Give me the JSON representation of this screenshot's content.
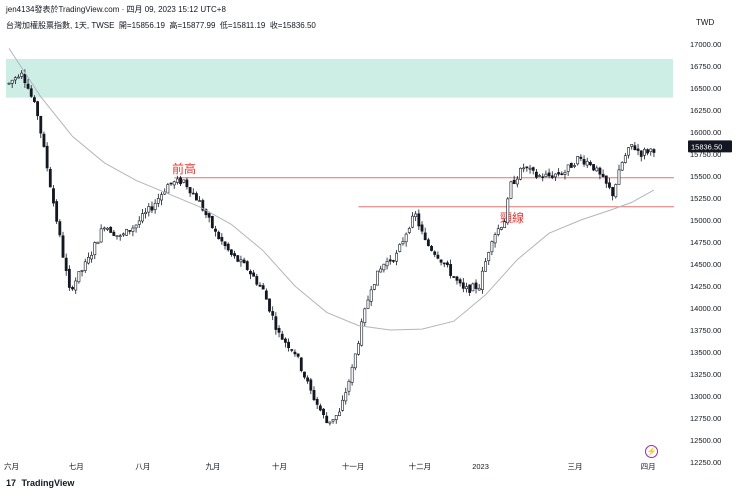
{
  "header": {
    "author_line": "jen4134發表於TradingView.com",
    "date_line": "四月 09, 2023 15:12 UTC+8",
    "symbol_line": "台灣加權股票指數, 1天, TWSE",
    "ohlc": {
      "open": "開=15856.19",
      "high": "高=15877.99",
      "low": "低=15811.19",
      "close": "收=15836.50"
    }
  },
  "footer": {
    "brand": "TradingView",
    "logo_icon": "tradingview-logo-icon",
    "flash_icon": "lightning-icon"
  },
  "colors": {
    "up": "#ffffff",
    "down": "#131722",
    "zone_fill": "#cdeee5",
    "hline": "#e57373",
    "ma": "#b2b5be",
    "annotation": "#e53935",
    "price_tag": "#131722"
  },
  "chart_data": {
    "type": "candlestick",
    "currency": "TWD",
    "ylim": [
      12250,
      17250
    ],
    "yticks": [
      12250,
      12500,
      12750,
      13000,
      13250,
      13500,
      13750,
      14000,
      14250,
      14500,
      14750,
      15000,
      15250,
      15500,
      15750,
      16000,
      16250,
      16500,
      16750,
      17000
    ],
    "ytick_labels": [
      "12250.00",
      "12500.00",
      "12750.00",
      "13000.00",
      "13250.00",
      "13500.00",
      "13750.00",
      "14000.00",
      "14250.00",
      "14500.00",
      "14750.00",
      "15000.00",
      "15250.00",
      "15500.00",
      "15750.00",
      "16000.00",
      "16250.00",
      "16500.00",
      "16750.00",
      "17000.00"
    ],
    "xticks": [
      {
        "label": "六月",
        "index": 0
      },
      {
        "label": "七月",
        "index": 21
      },
      {
        "label": "八月",
        "index": 42
      },
      {
        "label": "九月",
        "index": 64
      },
      {
        "label": "十月",
        "index": 85
      },
      {
        "label": "十一月",
        "index": 107
      },
      {
        "label": "十二月",
        "index": 128
      },
      {
        "label": "2023",
        "index": 148
      },
      {
        "label": "三月",
        "index": 178
      },
      {
        "label": "四月",
        "index": 201
      }
    ],
    "last_price": "15836.50",
    "last_value": 15836.5,
    "zone": {
      "low": 16390,
      "high": 16830,
      "from_index": 0,
      "to_index": 209
    },
    "hlines": [
      {
        "value": 15480,
        "from_index": 52,
        "to_index": 209,
        "label": "前高"
      },
      {
        "value": 15150,
        "from_index": 110,
        "to_index": 209,
        "label": "頸線"
      }
    ],
    "anchors": [
      [
        0,
        16550
      ],
      [
        4,
        16700
      ],
      [
        9,
        16200
      ],
      [
        14,
        15200
      ],
      [
        19,
        14200
      ],
      [
        25,
        14550
      ],
      [
        30,
        14950
      ],
      [
        35,
        14800
      ],
      [
        40,
        14950
      ],
      [
        45,
        15150
      ],
      [
        50,
        15400
      ],
      [
        55,
        15450
      ],
      [
        60,
        15200
      ],
      [
        65,
        14850
      ],
      [
        70,
        14600
      ],
      [
        75,
        14450
      ],
      [
        80,
        14200
      ],
      [
        85,
        13700
      ],
      [
        90,
        13500
      ],
      [
        95,
        13050
      ],
      [
        100,
        12700
      ],
      [
        104,
        12800
      ],
      [
        108,
        13300
      ],
      [
        111,
        13800
      ],
      [
        114,
        14250
      ],
      [
        118,
        14500
      ],
      [
        122,
        14600
      ],
      [
        126,
        14950
      ],
      [
        128,
        15050
      ],
      [
        131,
        14750
      ],
      [
        135,
        14600
      ],
      [
        139,
        14400
      ],
      [
        143,
        14200
      ],
      [
        148,
        14250
      ],
      [
        152,
        14800
      ],
      [
        156,
        15000
      ],
      [
        158,
        15400
      ],
      [
        162,
        15600
      ],
      [
        166,
        15500
      ],
      [
        170,
        15500
      ],
      [
        175,
        15550
      ],
      [
        179,
        15700
      ],
      [
        183,
        15650
      ],
      [
        187,
        15450
      ],
      [
        190,
        15300
      ],
      [
        193,
        15650
      ],
      [
        196,
        15850
      ],
      [
        199,
        15760
      ],
      [
        203,
        15810
      ]
    ],
    "ma_points": [
      [
        0,
        16950
      ],
      [
        10,
        16400
      ],
      [
        20,
        15950
      ],
      [
        30,
        15650
      ],
      [
        40,
        15450
      ],
      [
        50,
        15300
      ],
      [
        60,
        15150
      ],
      [
        70,
        14950
      ],
      [
        80,
        14650
      ],
      [
        90,
        14250
      ],
      [
        100,
        13950
      ],
      [
        110,
        13800
      ],
      [
        120,
        13750
      ],
      [
        130,
        13760
      ],
      [
        140,
        13850
      ],
      [
        150,
        14150
      ],
      [
        160,
        14550
      ],
      [
        170,
        14850
      ],
      [
        180,
        15000
      ],
      [
        190,
        15120
      ],
      [
        196,
        15200
      ],
      [
        203,
        15340
      ]
    ]
  }
}
